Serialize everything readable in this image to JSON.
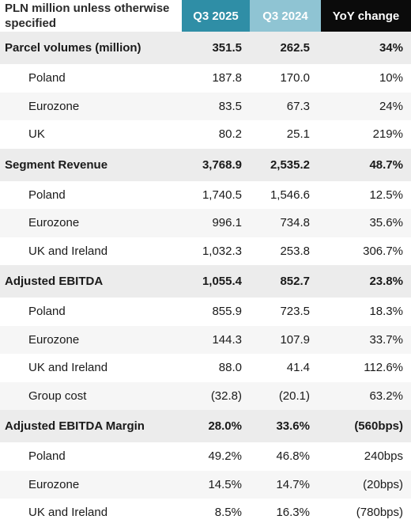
{
  "header": {
    "label": "PLN million unless otherwise specified",
    "col1": "Q3 2025",
    "col2": "Q3 2024",
    "col3": "YoY change"
  },
  "sections": [
    {
      "title": [
        "Parcel volumes (million)",
        "351.5",
        "262.5",
        "34%"
      ],
      "rows": [
        [
          "Poland",
          "187.8",
          "170.0",
          "10%"
        ],
        [
          "Eurozone",
          "83.5",
          "67.3",
          "24%"
        ],
        [
          "UK",
          "80.2",
          "25.1",
          "219%"
        ]
      ]
    },
    {
      "title": [
        "Segment Revenue",
        "3,768.9",
        "2,535.2",
        "48.7%"
      ],
      "rows": [
        [
          "Poland",
          "1,740.5",
          "1,546.6",
          "12.5%"
        ],
        [
          "Eurozone",
          "996.1",
          "734.8",
          "35.6%"
        ],
        [
          "UK and Ireland",
          "1,032.3",
          "253.8",
          "306.7%"
        ]
      ]
    },
    {
      "title": [
        "Adjusted EBITDA",
        "1,055.4",
        "852.7",
        "23.8%"
      ],
      "rows": [
        [
          "Poland",
          "855.9",
          "723.5",
          "18.3%"
        ],
        [
          "Eurozone",
          "144.3",
          "107.9",
          "33.7%"
        ],
        [
          "UK and Ireland",
          "88.0",
          "41.4",
          "112.6%"
        ],
        [
          "Group cost",
          "(32.8)",
          "(20.1)",
          "63.2%"
        ]
      ]
    },
    {
      "title": [
        "Adjusted EBITDA Margin",
        "28.0%",
        "33.6%",
        "(560bps)"
      ],
      "rows": [
        [
          "Poland",
          "49.2%",
          "46.8%",
          "240bps"
        ],
        [
          "Eurozone",
          "14.5%",
          "14.7%",
          "(20bps)"
        ],
        [
          "UK and Ireland",
          "8.5%",
          "16.3%",
          "(780bps)"
        ]
      ]
    }
  ]
}
